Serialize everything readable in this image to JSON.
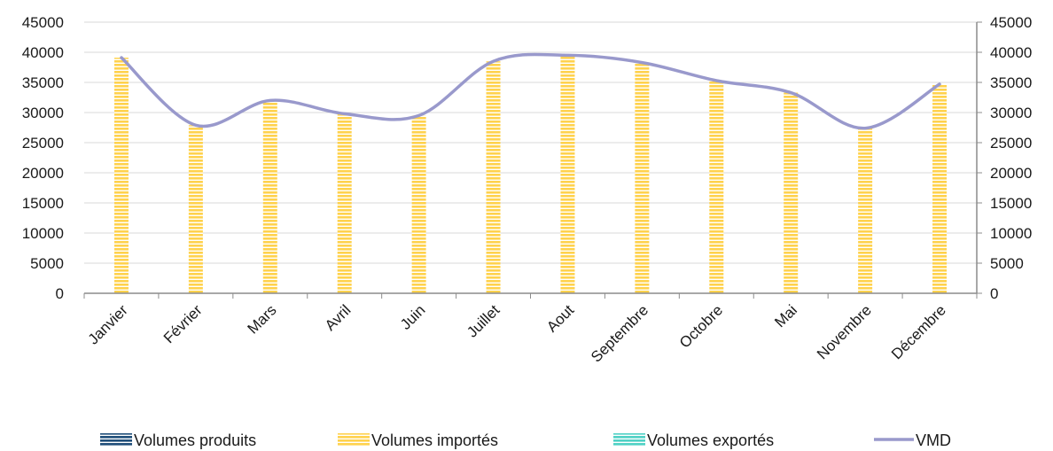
{
  "chart_data": {
    "type": "bar",
    "categories": [
      "Janvier",
      "Février",
      "Mars",
      "Avril",
      "Juin",
      "Juillet",
      "Aout",
      "Septembre",
      "Octobre",
      "Mai",
      "Novembre",
      "Décembre"
    ],
    "series": [
      {
        "name": "Volumes produits",
        "kind": "bar",
        "color": "#1f4e79",
        "values": [
          0,
          0,
          0,
          0,
          0,
          0,
          0,
          0,
          0,
          0,
          0,
          0
        ]
      },
      {
        "name": "Volumes importés",
        "kind": "bar",
        "color": "#ffd966",
        "values": [
          39100,
          27900,
          32000,
          29800,
          29500,
          38500,
          39500,
          38300,
          35300,
          33300,
          27400,
          34700
        ]
      },
      {
        "name": "Volumes exportés",
        "kind": "bar",
        "color": "#4fd1c5",
        "values": [
          0,
          0,
          0,
          0,
          0,
          0,
          0,
          0,
          0,
          0,
          0,
          0
        ]
      },
      {
        "name": "VMD",
        "kind": "line",
        "color": "#9999cc",
        "values": [
          39100,
          27900,
          32000,
          29800,
          29500,
          38500,
          39500,
          38300,
          35300,
          33300,
          27400,
          34700
        ]
      }
    ],
    "ylim": [
      0,
      45000
    ],
    "y2lim": [
      0,
      45000
    ],
    "yticks": [
      "0",
      "5000",
      "10000",
      "15000",
      "20000",
      "25000",
      "30000",
      "35000",
      "40000",
      "45000"
    ],
    "grid": true,
    "legend_position": "bottom",
    "title": "",
    "xlabel": "",
    "ylabel": ""
  }
}
